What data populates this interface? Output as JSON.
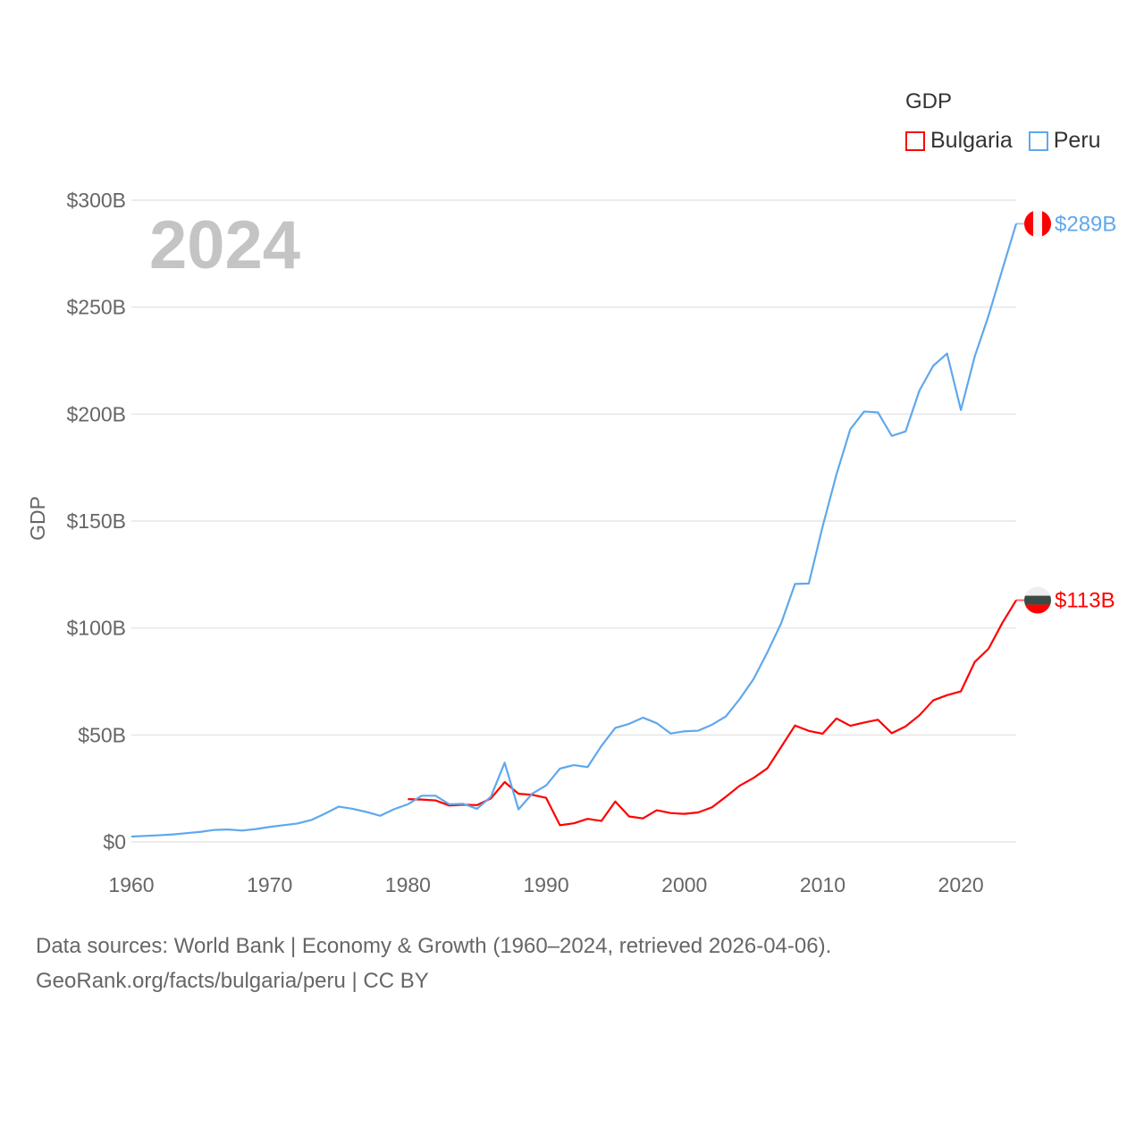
{
  "chart_data": {
    "type": "line",
    "title": "",
    "year_label": "2024",
    "xlabel": "",
    "ylabel": "GDP",
    "xlim": [
      1960,
      2024
    ],
    "ylim": [
      0,
      300
    ],
    "grid": true,
    "x_ticks": [
      1960,
      1970,
      1980,
      1990,
      2000,
      2010,
      2020
    ],
    "x_tick_labels": [
      "1960",
      "1970",
      "1980",
      "1990",
      "2000",
      "2010",
      "2020"
    ],
    "y_ticks": [
      0,
      50,
      100,
      150,
      200,
      250,
      300
    ],
    "y_tick_labels": [
      "$0",
      "$50B",
      "$100B",
      "$150B",
      "$200B",
      "$250B",
      "$300B"
    ],
    "legend": {
      "title": "GDP",
      "placement": "top-right"
    },
    "series": [
      {
        "name": "Bulgaria",
        "color": "#ff0000",
        "end_label": "$113B",
        "start_year": 1980,
        "values": [
          20.0,
          19.8,
          19.4,
          17.0,
          17.4,
          17.2,
          20.3,
          28.0,
          22.5,
          22.0,
          20.6,
          7.8,
          8.7,
          10.8,
          9.8,
          18.9,
          11.9,
          11.0,
          14.8,
          13.5,
          13.1,
          13.8,
          16.2,
          21.1,
          26.3,
          29.9,
          34.4,
          44.4,
          54.4,
          51.9,
          50.6,
          57.7,
          54.3,
          55.8,
          57.1,
          50.8,
          54.0,
          59.2,
          66.2,
          68.6,
          70.4,
          84.1,
          90.3,
          102.4,
          113.0
        ]
      },
      {
        "name": "Peru",
        "color": "#5fa8ec",
        "end_label": "$289B",
        "start_year": 1960,
        "values": [
          2.5,
          2.8,
          3.1,
          3.5,
          4.1,
          4.7,
          5.6,
          5.8,
          5.3,
          6.0,
          7.0,
          7.8,
          8.6,
          10.2,
          13.2,
          16.5,
          15.5,
          14.0,
          12.2,
          15.3,
          17.6,
          21.6,
          21.6,
          17.6,
          17.8,
          15.5,
          21.1,
          37.0,
          15.2,
          22.6,
          26.4,
          34.3,
          35.9,
          35.0,
          44.9,
          53.3,
          55.2,
          58.1,
          55.5,
          50.7,
          51.7,
          52.0,
          54.8,
          58.7,
          66.8,
          76.1,
          88.6,
          102.2,
          120.6,
          120.8,
          147.5,
          171.8,
          192.9,
          201.2,
          200.8,
          189.8,
          191.9,
          211.0,
          222.6,
          228.3,
          201.9,
          226.9,
          246.0,
          267.6,
          289.0
        ]
      }
    ]
  },
  "footer": {
    "line1": "Data sources: World Bank | Economy & Growth (1960–2024, retrieved 2026-04-06).",
    "line2": "GeoRank.org/facts/bulgaria/peru | CC BY"
  }
}
